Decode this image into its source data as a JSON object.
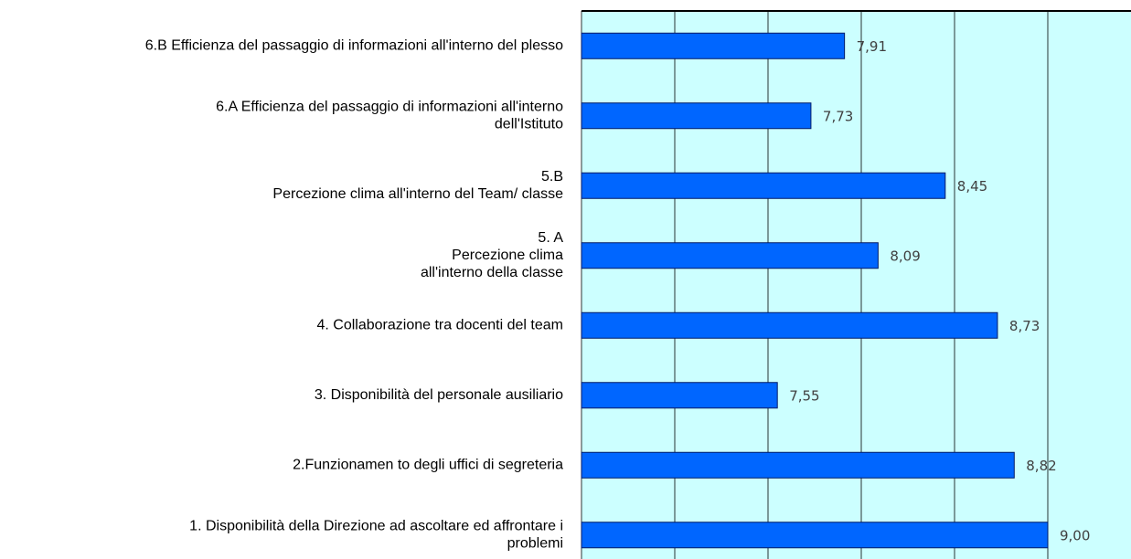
{
  "chart_data": {
    "type": "bar",
    "orientation": "horizontal",
    "categories": [
      "6.B Efficienza del passaggio di informazioni all'interno del plesso",
      "6.A Efficienza del passaggio di informazioni all'interno\ndell'Istituto",
      "5.B\nPercezione clima all'interno del Team/ classe",
      "5. A\nPercezione clima\nall'interno della classe",
      "4. Collaborazione tra docenti del team",
      "3. Disponibilità del personale ausiliario",
      "2.Funzionamen to degli uffici di segreteria",
      "1. Disponibilità della Direzione ad ascoltare  ed affrontare i\nproblemi"
    ],
    "values": [
      7.91,
      7.73,
      8.45,
      8.09,
      8.73,
      7.55,
      8.82,
      9.0
    ],
    "value_labels": [
      "7,91",
      "7,73",
      "8,45",
      "8,09",
      "8,73",
      "7,55",
      "8,82",
      "9,00"
    ],
    "color": "#0066ff",
    "xlim": [
      6.5,
      9.5
    ],
    "xticks": [
      6.5,
      7,
      7.5,
      8,
      8.5,
      9,
      9.5
    ],
    "grid": true
  }
}
